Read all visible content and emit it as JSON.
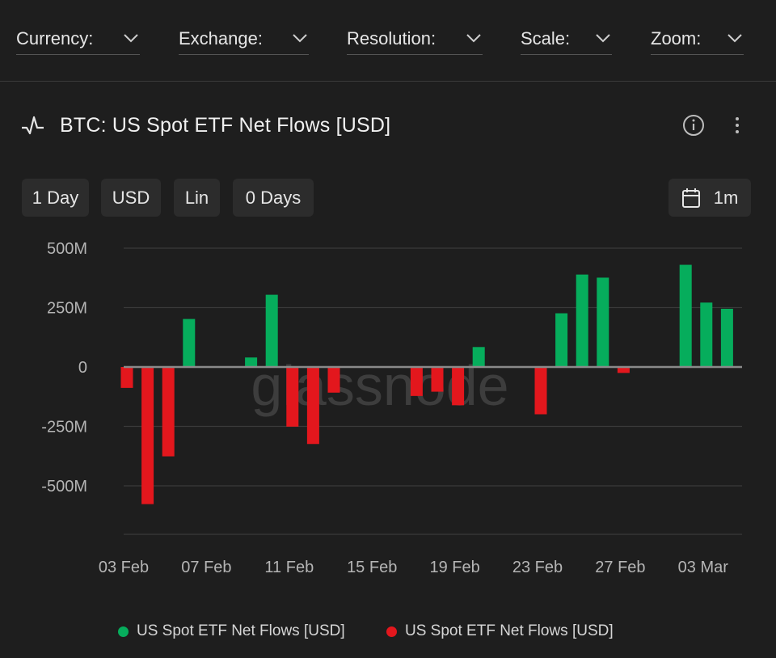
{
  "filters": [
    {
      "label": "Currency:"
    },
    {
      "label": "Exchange:"
    },
    {
      "label": "Resolution:"
    },
    {
      "label": "Scale:"
    },
    {
      "label": "Zoom:"
    }
  ],
  "chart_header": {
    "title": "BTC: US Spot ETF Net Flows [USD]",
    "icons": [
      "pulse-icon",
      "info-icon",
      "more-vertical-icon"
    ]
  },
  "controls": {
    "resolution": "1 Day",
    "currency": "USD",
    "scale": "Lin",
    "moving_average": "0 Days",
    "date_range": "1m",
    "date_icon": "calendar-icon"
  },
  "watermark": "glassnode",
  "colors": {
    "positive": "#06ad5c",
    "negative": "#e3171d",
    "background": "#1e1e1e",
    "grid": "#3a3a3a"
  },
  "chart_data": {
    "type": "bar",
    "title": "BTC: US Spot ETF Net Flows [USD]",
    "ylim": [
      -700,
      500
    ],
    "y_ticks": [
      {
        "value": 500,
        "label": "500M"
      },
      {
        "value": 250,
        "label": "250M"
      },
      {
        "value": 0,
        "label": "0"
      },
      {
        "value": -250,
        "label": "-250M"
      },
      {
        "value": -500,
        "label": "-500M"
      }
    ],
    "x_ticks": [
      "03 Feb",
      "07 Feb",
      "11 Feb",
      "15 Feb",
      "19 Feb",
      "23 Feb",
      "27 Feb",
      "03 Mar"
    ],
    "categories": [
      "03 Feb",
      "04 Feb",
      "05 Feb",
      "06 Feb",
      "07 Feb",
      "08 Feb",
      "09 Feb",
      "10 Feb",
      "11 Feb",
      "12 Feb",
      "13 Feb",
      "14 Feb",
      "15 Feb",
      "16 Feb",
      "17 Feb",
      "18 Feb",
      "19 Feb",
      "20 Feb",
      "21 Feb",
      "22 Feb",
      "23 Feb",
      "24 Feb",
      "25 Feb",
      "26 Feb",
      "27 Feb",
      "28 Feb",
      "01 Mar",
      "02 Mar",
      "03 Mar",
      "04 Mar",
      "05 Mar"
    ],
    "values": [
      -88,
      -577,
      -376,
      202,
      0,
      0,
      40,
      304,
      -251,
      -324,
      -108,
      0,
      0,
      0,
      -122,
      -104,
      -161,
      84,
      0,
      0,
      -199,
      226,
      389,
      376,
      -25,
      0,
      0,
      430,
      271,
      245,
      0
    ],
    "series": [
      {
        "name": "US Spot ETF Net Flows [USD]",
        "sign": "positive"
      },
      {
        "name": "US Spot ETF Net Flows [USD]",
        "sign": "negative"
      }
    ],
    "grid": true,
    "legend_position": "bottom-center"
  }
}
